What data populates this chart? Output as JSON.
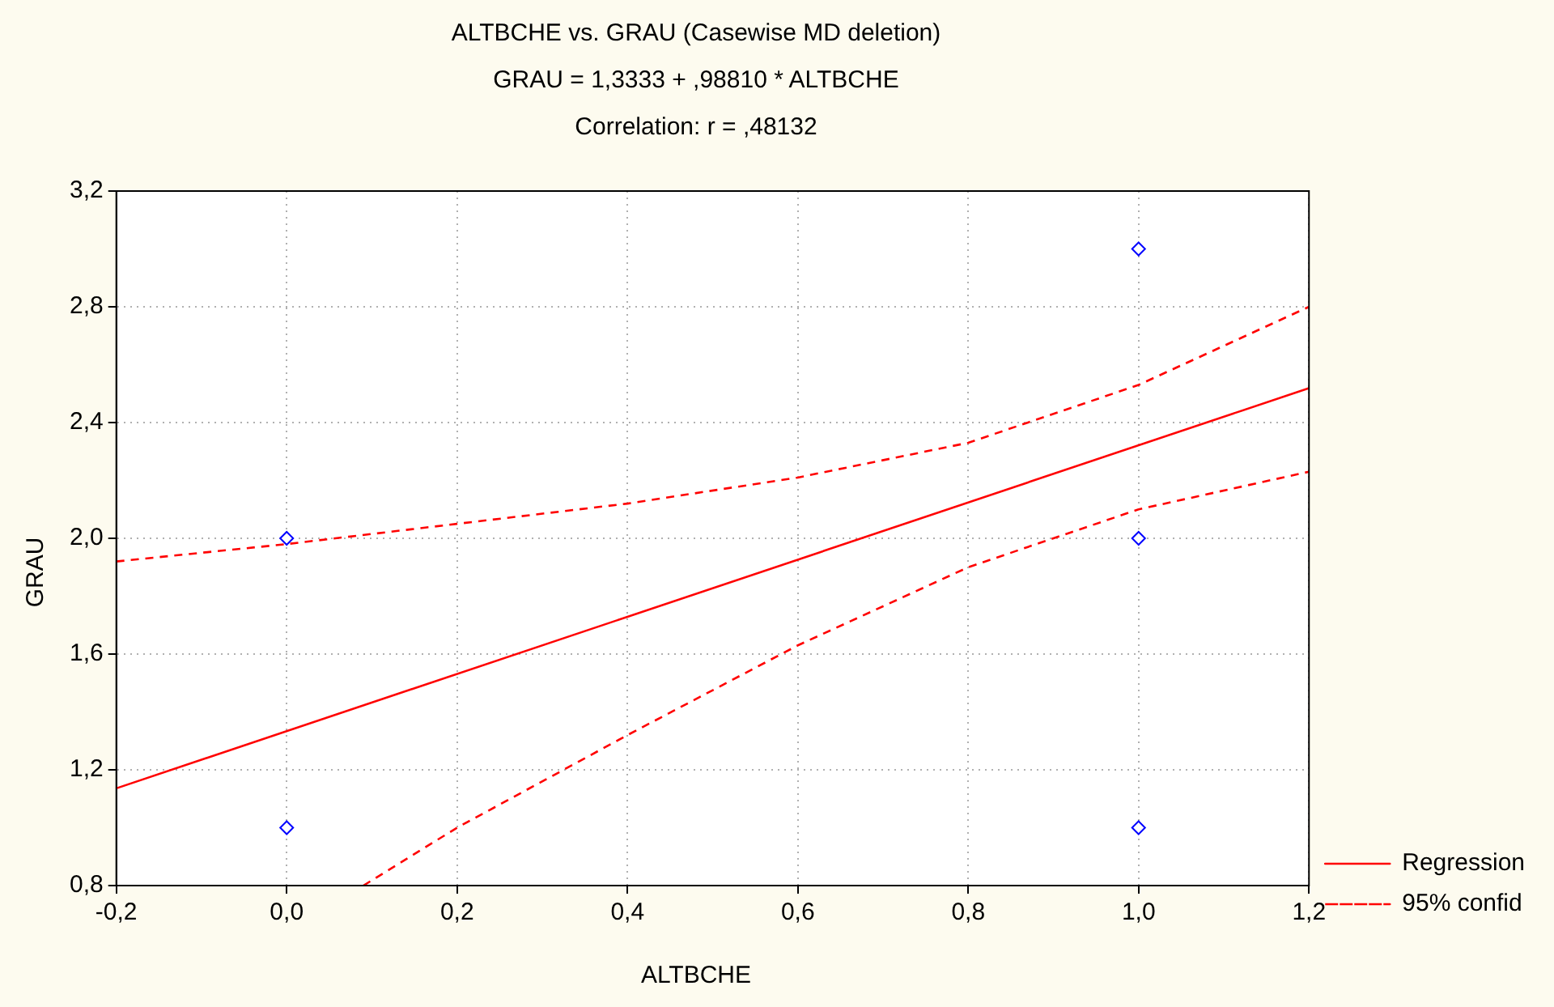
{
  "chart_data": {
    "type": "scatter",
    "title": "ALTBCHE vs. GRAU (Casewise MD deletion)",
    "subtitle": "GRAU = 1,3333 + ,98810 * ALTBCHE",
    "annotations": [
      "Correlation: r = ,48132"
    ],
    "xlabel": "ALTBCHE",
    "ylabel": "GRAU",
    "xlim": [
      -0.2,
      1.2
    ],
    "ylim": [
      0.8,
      3.2
    ],
    "xticks": [
      {
        "value": -0.2,
        "label": "-0,2"
      },
      {
        "value": 0,
        "label": "0,0"
      },
      {
        "value": 0.2,
        "label": "0,2"
      },
      {
        "value": 0.4,
        "label": "0,4"
      },
      {
        "value": 0.6,
        "label": "0,6"
      },
      {
        "value": 0.8,
        "label": "0,8"
      },
      {
        "value": 1,
        "label": "1,0"
      },
      {
        "value": 1.2,
        "label": "1,2"
      }
    ],
    "yticks": [
      {
        "value": 0.8,
        "label": "0,8"
      },
      {
        "value": 1.2,
        "label": "1,2"
      },
      {
        "value": 1.6,
        "label": "1,6"
      },
      {
        "value": 2,
        "label": "2,0"
      },
      {
        "value": 2.4,
        "label": "2,4"
      },
      {
        "value": 2.8,
        "label": "2,8"
      },
      {
        "value": 3.2,
        "label": "3,2"
      }
    ],
    "grid": true,
    "legend": "bottom right",
    "series": [
      {
        "color": "#0000ff",
        "marker": "diamond",
        "x": [
          0,
          0,
          1,
          1,
          1
        ],
        "values": [
          2,
          1,
          3,
          2,
          1
        ]
      },
      {
        "type": "line",
        "name": "Regression",
        "color": "#ff0000",
        "line_style": "solid",
        "marker": "none",
        "x": [
          -0.2,
          1.2
        ],
        "values": [
          1.136,
          2.519
        ]
      },
      {
        "type": "line",
        "name": "95% confid",
        "color": "#ff0000",
        "line_style": "dashed",
        "marker": "none",
        "x": [
          -0.2,
          0,
          0.2,
          0.4,
          0.6,
          0.8,
          1,
          1.2
        ],
        "values": [
          1.92,
          1.98,
          2.05,
          2.12,
          2.21,
          2.33,
          2.53,
          2.8
        ]
      },
      {
        "type": "line",
        "color": "#ff0000",
        "line_style": "dashed",
        "marker": "none",
        "x": [
          0.09,
          0.2,
          0.4,
          0.6,
          0.8,
          1,
          1.2
        ],
        "values": [
          0.8,
          1.0,
          1.32,
          1.63,
          1.9,
          2.1,
          2.23
        ]
      }
    ]
  }
}
